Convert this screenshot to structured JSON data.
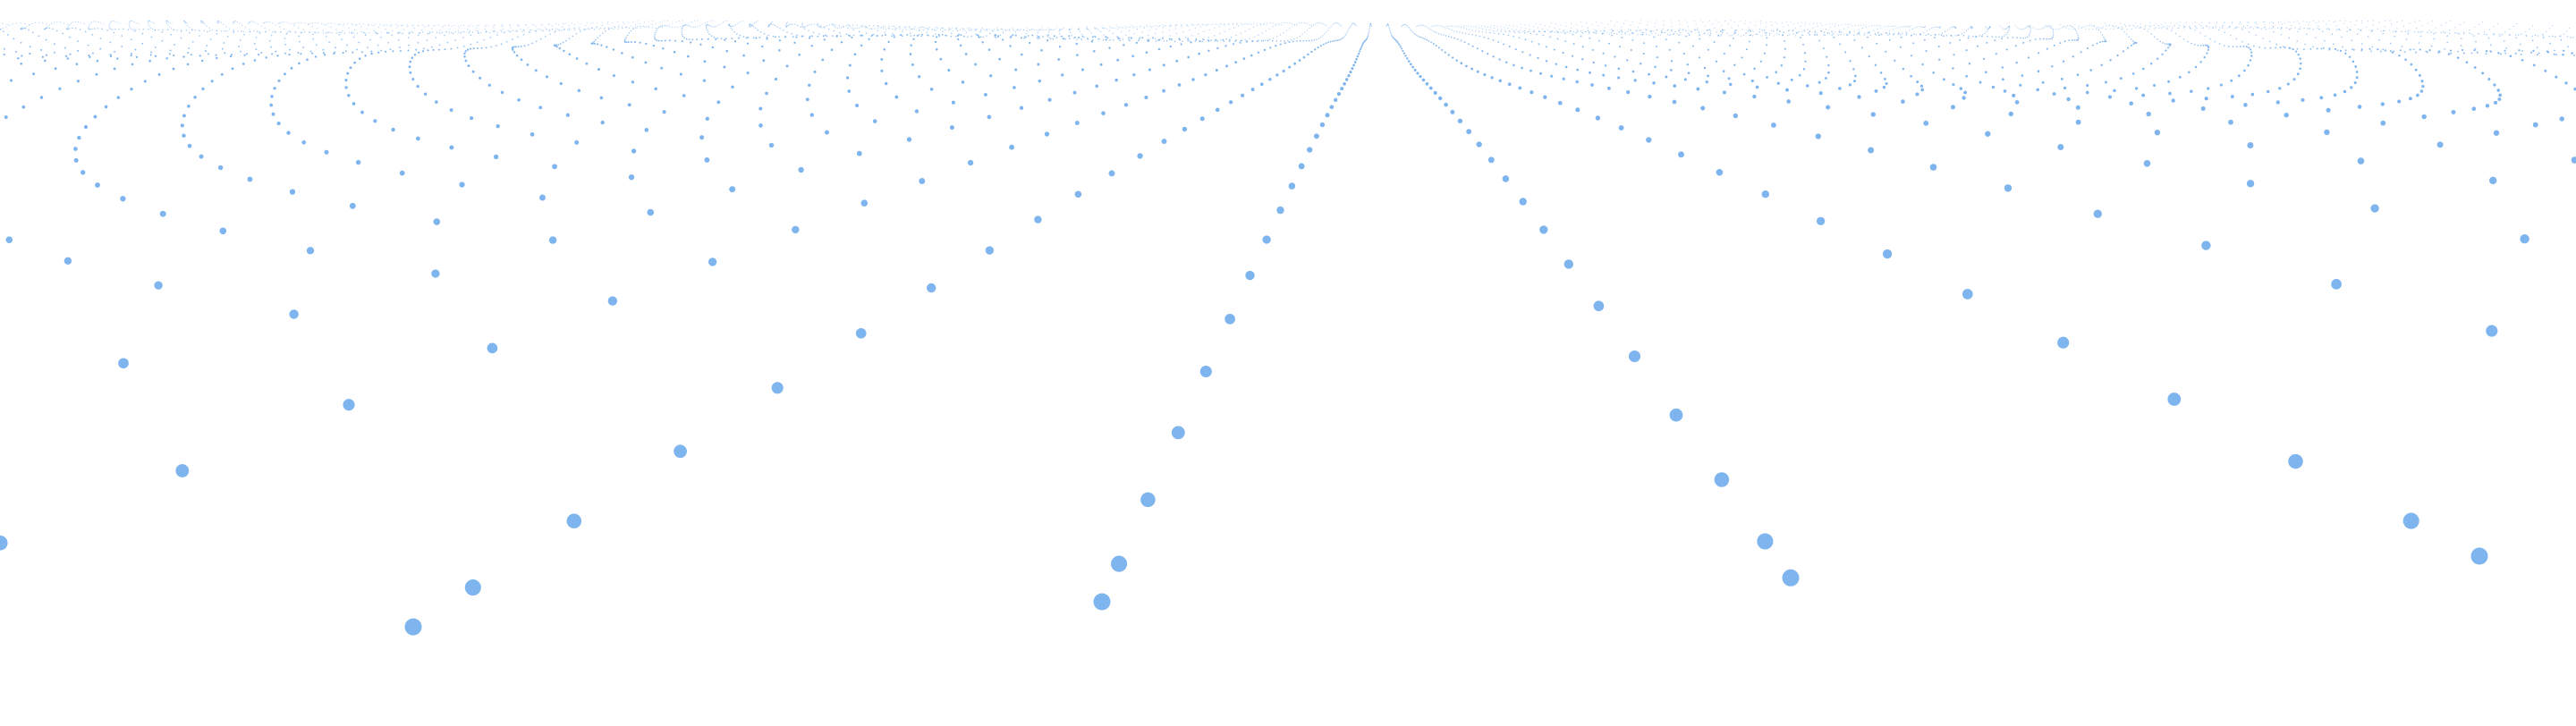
{
  "scene": {
    "subject": "particle-wave-dot-grid",
    "dot_color": "#7fb5ee",
    "background_color": "#ffffff"
  }
}
